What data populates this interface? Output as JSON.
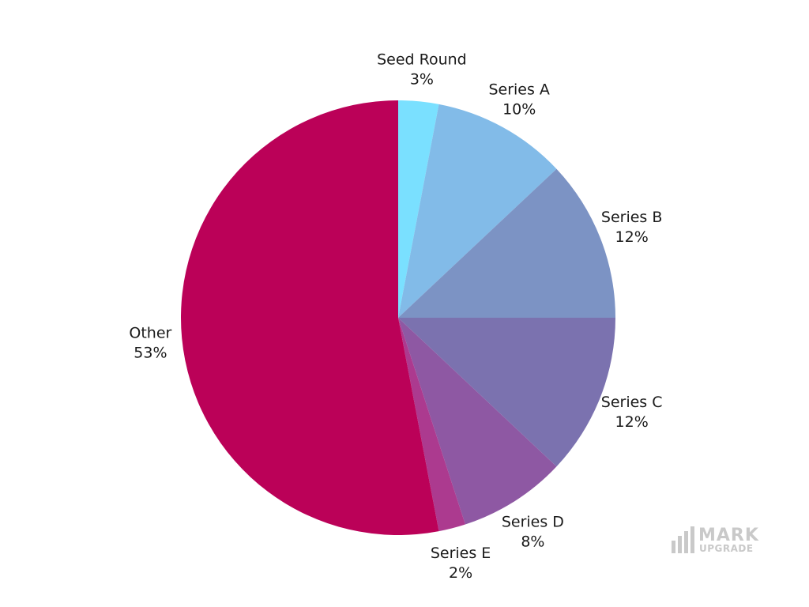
{
  "chart_data": {
    "type": "pie",
    "title": "",
    "slices": [
      {
        "label": "Seed Round",
        "value": 3,
        "display": "3%",
        "color": "#7AE0FF"
      },
      {
        "label": "Series A",
        "value": 10,
        "display": "10%",
        "color": "#82BBE8"
      },
      {
        "label": "Series B",
        "value": 12,
        "display": "12%",
        "color": "#7C93C4"
      },
      {
        "label": "Series C",
        "value": 12,
        "display": "12%",
        "color": "#7B72AF"
      },
      {
        "label": "Series D",
        "value": 8,
        "display": "8%",
        "color": "#8E58A3"
      },
      {
        "label": "Series E",
        "value": 2,
        "display": "2%",
        "color": "#AC3A8F"
      },
      {
        "label": "Other",
        "value": 53,
        "display": "53%",
        "color": "#BB0158"
      }
    ],
    "start_angle": "12 o'clock",
    "direction": "clockwise",
    "legend": "none"
  },
  "watermark": {
    "line1": "MARK",
    "line2": "UPGRADE",
    "color": "#C9C9C9"
  }
}
